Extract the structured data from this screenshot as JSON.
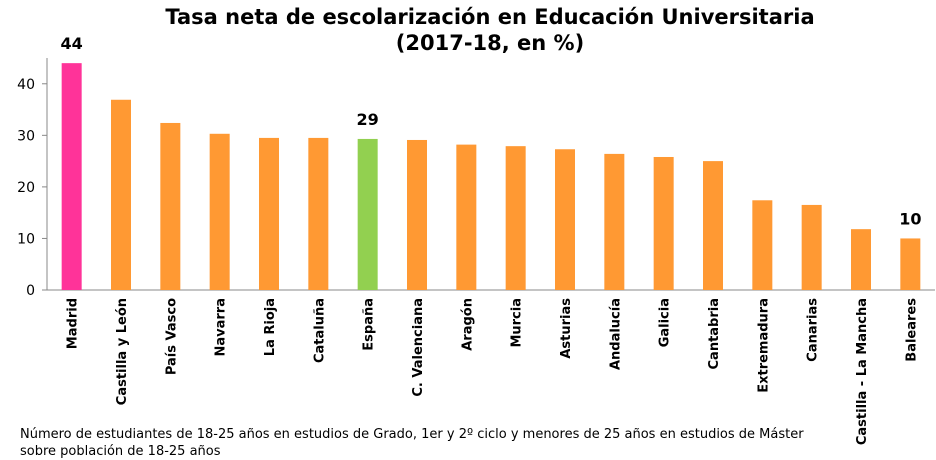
{
  "chart_data": {
    "type": "bar",
    "title": [
      "Tasa neta de escolarización en Educación Universitaria",
      "(2017-18, en %)"
    ],
    "categories": [
      "Madrid",
      "Castilla y León",
      "País Vasco",
      "Navarra",
      "La Rioja",
      "Cataluña",
      "España",
      "C. Valenciana",
      "Aragón",
      "Murcia",
      "Asturias",
      "Andalucía",
      "Galicia",
      "Cantabria",
      "Extremadura",
      "Canarias",
      "Castilla - La Mancha",
      "Baleares"
    ],
    "values": [
      44,
      36.9,
      32.4,
      30.3,
      29.5,
      29.5,
      29.3,
      29.1,
      28.2,
      27.9,
      27.3,
      26.4,
      25.8,
      25.0,
      17.4,
      16.5,
      11.8,
      10
    ],
    "value_labels": [
      "44",
      null,
      null,
      null,
      null,
      null,
      "29",
      null,
      null,
      null,
      null,
      null,
      null,
      null,
      null,
      null,
      null,
      "10"
    ],
    "colors": [
      "#ff3399",
      "#ff9933",
      "#ff9933",
      "#ff9933",
      "#ff9933",
      "#ff9933",
      "#92d050",
      "#ff9933",
      "#ff9933",
      "#ff9933",
      "#ff9933",
      "#ff9933",
      "#ff9933",
      "#ff9933",
      "#ff9933",
      "#ff9933",
      "#ff9933",
      "#ff9933"
    ],
    "ylim": [
      0,
      45
    ],
    "yticks": [
      0,
      10,
      20,
      30,
      40
    ],
    "grid": false,
    "footnote": "Número de estudiantes de 18-25 años en estudios de Grado, 1er y 2º ciclo y menores de 25 años en estudios de Máster sobre población de 18-25 años"
  }
}
